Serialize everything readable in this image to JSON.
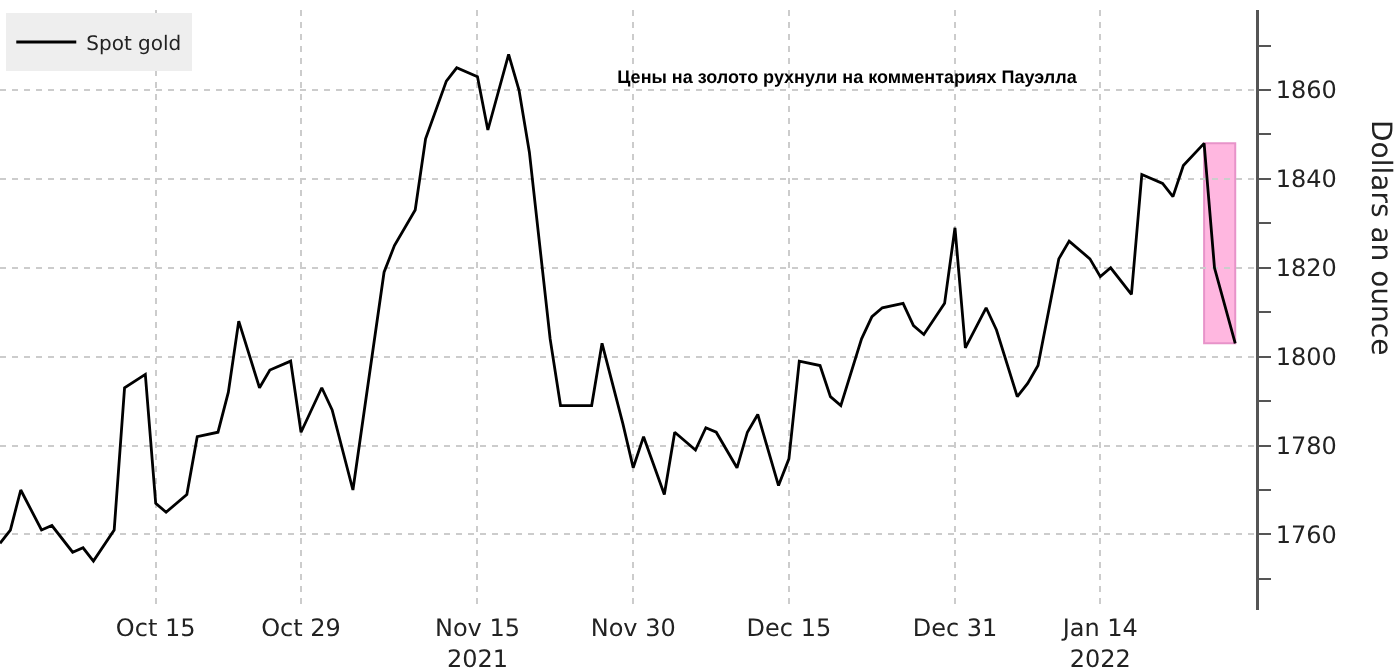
{
  "chart_data": {
    "type": "line",
    "title": "Цены на золото рухнули на комментариях Пауэлла",
    "ylabel": "Dollars an ounce",
    "x": [
      "2021-09-30",
      "2021-10-01",
      "2021-10-02",
      "2021-10-04",
      "2021-10-05",
      "2021-10-07",
      "2021-10-08",
      "2021-10-09",
      "2021-10-11",
      "2021-10-12",
      "2021-10-14",
      "2021-10-15",
      "2021-10-16",
      "2021-10-18",
      "2021-10-19",
      "2021-10-21",
      "2021-10-22",
      "2021-10-23",
      "2021-10-25",
      "2021-10-26",
      "2021-10-28",
      "2021-10-29",
      "2021-10-31",
      "2021-11-01",
      "2021-11-03",
      "2021-11-06",
      "2021-11-07",
      "2021-11-09",
      "2021-11-10",
      "2021-11-12",
      "2021-11-13",
      "2021-11-15",
      "2021-11-16",
      "2021-11-18",
      "2021-11-19",
      "2021-11-20",
      "2021-11-22",
      "2021-11-23",
      "2021-11-25",
      "2021-11-26",
      "2021-11-27",
      "2021-11-29",
      "2021-11-30",
      "2021-12-01",
      "2021-12-03",
      "2021-12-04",
      "2021-12-06",
      "2021-12-07",
      "2021-12-08",
      "2021-12-10",
      "2021-12-11",
      "2021-12-12",
      "2021-12-14",
      "2021-12-15",
      "2021-12-16",
      "2021-12-18",
      "2021-12-19",
      "2021-12-20",
      "2021-12-22",
      "2021-12-23",
      "2021-12-24",
      "2021-12-26",
      "2021-12-27",
      "2021-12-28",
      "2021-12-30",
      "2021-12-31",
      "2022-01-01",
      "2022-01-03",
      "2022-01-04",
      "2022-01-06",
      "2022-01-07",
      "2022-01-08",
      "2022-01-10",
      "2022-01-11",
      "2022-01-13",
      "2022-01-14",
      "2022-01-15",
      "2022-01-17",
      "2022-01-18",
      "2022-01-20",
      "2022-01-21",
      "2022-01-22",
      "2022-01-24",
      "2022-01-25",
      "2022-01-27"
    ],
    "series": [
      {
        "name": "Spot gold",
        "color": "#000000",
        "values": [
          1758,
          1761,
          1770,
          1761,
          1762,
          1756,
          1757,
          1754,
          1761,
          1793,
          1796,
          1767,
          1765,
          1769,
          1782,
          1783,
          1792,
          1808,
          1793,
          1797,
          1799,
          1783,
          1793,
          1788,
          1770,
          1819,
          1825,
          1833,
          1849,
          1862,
          1865,
          1863,
          1851,
          1868,
          1860,
          1846,
          1804,
          1789,
          1789,
          1789,
          1803,
          1785,
          1775,
          1782,
          1769,
          1783,
          1779,
          1784,
          1783,
          1775,
          1783,
          1787,
          1771,
          1777,
          1799,
          1798,
          1791,
          1789,
          1804,
          1809,
          1811,
          1812,
          1807,
          1805,
          1812,
          1829,
          1802,
          1811,
          1806,
          1791,
          1794,
          1798,
          1822,
          1826,
          1822,
          1818,
          1820,
          1814,
          1841,
          1839,
          1836,
          1843,
          1848,
          1820,
          1803
        ]
      }
    ],
    "xlim": [
      "2021-09-30",
      "2022-01-29"
    ],
    "xticks": [
      {
        "value": "2021-10-15",
        "label": "Oct 15"
      },
      {
        "value": "2021-10-29",
        "label": "Oct 29"
      },
      {
        "value": "2021-11-15",
        "label": "Nov 15\n2021"
      },
      {
        "value": "2021-11-30",
        "label": "Nov 30"
      },
      {
        "value": "2021-12-15",
        "label": "Dec 15"
      },
      {
        "value": "2021-12-31",
        "label": "Dec 31"
      },
      {
        "value": "2022-01-14",
        "label": "Jan 14\n2022"
      }
    ],
    "ylim": [
      1743,
      1878
    ],
    "yticks": [
      {
        "value": 1750,
        "label": null
      },
      1760,
      {
        "value": 1770,
        "label": null
      },
      1780,
      {
        "value": 1790,
        "label": null
      },
      1800,
      {
        "value": 1810,
        "label": null
      },
      1820,
      {
        "value": 1830,
        "label": null
      },
      1840,
      {
        "value": 1850,
        "label": null
      },
      1860,
      {
        "value": 1870,
        "label": null
      }
    ],
    "bands": [
      {
        "axis": "x",
        "from": "2022-01-24",
        "to": "2022-01-27",
        "color": "#ff9fd6"
      }
    ],
    "grid": true,
    "legend": "top left",
    "marker": "none",
    "line_style": "solid"
  }
}
